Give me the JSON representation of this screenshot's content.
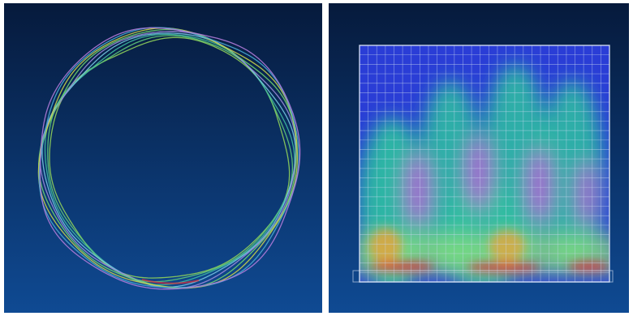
{
  "views": [
    {
      "id": "ring-top-view",
      "mesh_lines": 9
    },
    {
      "id": "cylinder-side-view",
      "grid_columns": 29,
      "grid_rows": 25
    }
  ],
  "colors": {
    "bg_top": "#061a3c",
    "bg_bottom": "#0f4a93",
    "low": "#2a3dd6",
    "mid": "#2fc2a0",
    "high": "#8be07a",
    "peak": "#e9a13a",
    "hot": "#e0303a",
    "node": "#b45ad8",
    "grid": "#c8d8f0"
  }
}
